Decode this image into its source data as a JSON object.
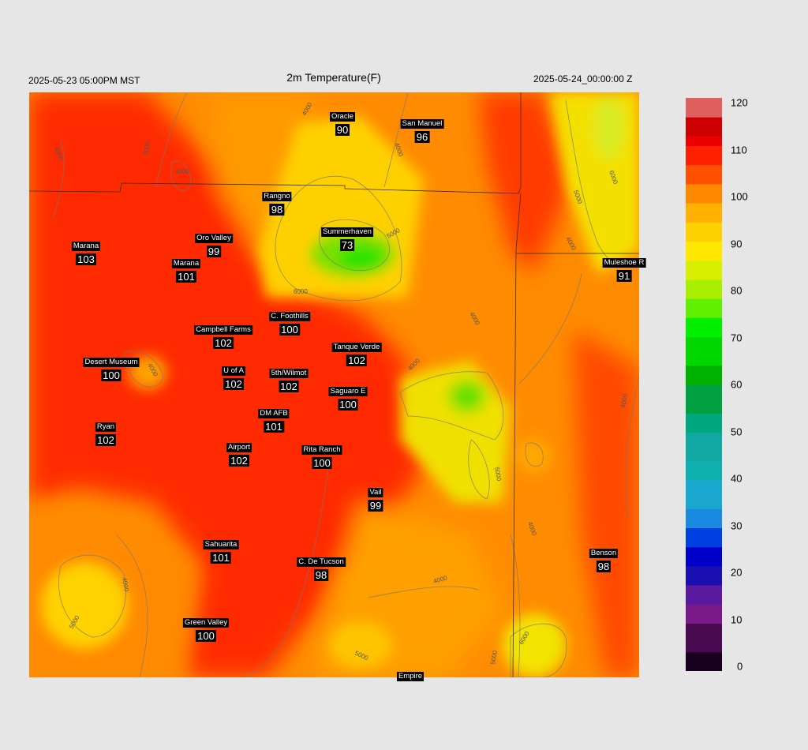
{
  "header": {
    "valid_local": "2025-05-23 05:00PM MST",
    "title": "2m Temperature(F)",
    "valid_utc": "2025-05-24_00:00:00 Z"
  },
  "colorbar": {
    "min": 0,
    "max": 120,
    "ticks": [
      "0",
      "10",
      "20",
      "30",
      "40",
      "50",
      "60",
      "70",
      "80",
      "90",
      "100",
      "110",
      "120"
    ]
  },
  "stations": [
    {
      "name": "Oracle",
      "value": "90"
    },
    {
      "name": "San Manuel",
      "value": "96"
    },
    {
      "name": "Rangno",
      "value": "98"
    },
    {
      "name": "Summerhaven",
      "value": "73"
    },
    {
      "name": "Oro Valley",
      "value": "99"
    },
    {
      "name": "Marana",
      "value": "103"
    },
    {
      "name": "Marana",
      "value": "101"
    },
    {
      "name": "Mule shoe",
      "value": "91",
      "display": "Muleshoe R"
    },
    {
      "name": "C. Foothills",
      "value": "100"
    },
    {
      "name": "Campbell Farms",
      "value": "102"
    },
    {
      "name": "Tanque Verde",
      "value": "102"
    },
    {
      "name": "Desert Museum",
      "value": "100"
    },
    {
      "name": "U of A",
      "value": "102"
    },
    {
      "name": "5th/Wilmot",
      "value": "102"
    },
    {
      "name": "Saguaro E",
      "value": "100"
    },
    {
      "name": "DM AFB",
      "value": "101"
    },
    {
      "name": "Ryan",
      "value": "102"
    },
    {
      "name": "Airport",
      "value": "102"
    },
    {
      "name": "Rita Ranch",
      "value": "100"
    },
    {
      "name": "Vail",
      "value": "99"
    },
    {
      "name": "Sahuarita",
      "value": "101"
    },
    {
      "name": "C. De Tucson",
      "value": "98"
    },
    {
      "name": "Benson",
      "value": "98"
    },
    {
      "name": "Green Valley",
      "value": "100"
    },
    {
      "name": "Empire",
      "value": ""
    }
  ],
  "contour_labels": [
    "4000",
    "5000",
    "6000"
  ]
}
